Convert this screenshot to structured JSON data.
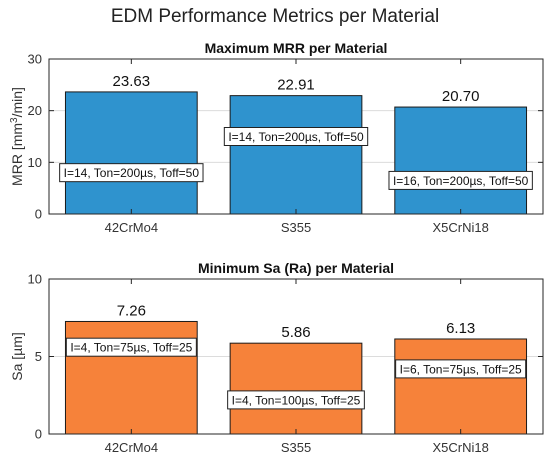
{
  "figure": {
    "title": "EDM Performance Metrics per Material",
    "colors": {
      "mrr_bar": "#2F93CE",
      "sa_bar": "#F6823A",
      "bar_edge": "#1a1a1a",
      "grid": "#dcdcdc"
    }
  },
  "chart_data": [
    {
      "type": "bar",
      "title": "Maximum MRR per Material",
      "ylabel": "MRR [mm³/min]",
      "ylabel_base": "MRR [mm",
      "ylabel_sup": "3",
      "ylabel_end": "/min]",
      "ylim": [
        0,
        30
      ],
      "yticks": [
        0,
        10,
        20,
        30
      ],
      "grid": true,
      "categories": [
        "42CrMo4",
        "S355",
        "X5CrNi18"
      ],
      "values": [
        23.63,
        22.91,
        20.7
      ],
      "value_labels": [
        "23.63",
        "22.91",
        "20.70"
      ],
      "annotations": [
        {
          "text": "I=14, Ton=200µs, Toff=50",
          "y": 8
        },
        {
          "text": "I=14, Ton=200µs, Toff=50",
          "y": 15
        },
        {
          "text": "I=16, Ton=200µs, Toff=50",
          "y": 6.5
        }
      ]
    },
    {
      "type": "bar",
      "title": "Minimum Sa (Ra) per Material",
      "ylabel": "Sa [µm]",
      "ylim": [
        0,
        10
      ],
      "yticks": [
        0,
        5,
        10
      ],
      "grid": true,
      "categories": [
        "42CrMo4",
        "S355",
        "X5CrNi18"
      ],
      "values": [
        7.26,
        5.86,
        6.13
      ],
      "value_labels": [
        "7.26",
        "5.86",
        "6.13"
      ],
      "annotations": [
        {
          "text": "I=4, Ton=75µs, Toff=25",
          "y": 5.6
        },
        {
          "text": "I=4, Ton=100µs, Toff=25",
          "y": 2.2
        },
        {
          "text": "I=6, Ton=75µs, Toff=25",
          "y": 4.2
        }
      ]
    }
  ]
}
